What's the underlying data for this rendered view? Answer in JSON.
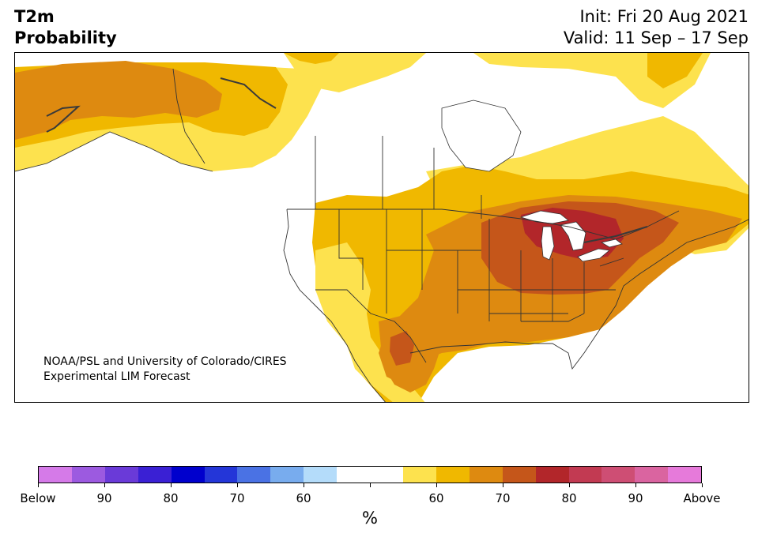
{
  "header": {
    "title_line1": "T2m",
    "title_line2": "Probability",
    "init": "Init: Fri 20 Aug 2021",
    "valid": "Valid: 11 Sep – 17 Sep"
  },
  "map": {
    "region": "North America",
    "credit_line1": "NOAA/PSL and University of Colorado/CIRES",
    "credit_line2": "Experimental LIM Forecast"
  },
  "colorbar": {
    "unit": "%",
    "colors": [
      "#d57ae8",
      "#9c5ae0",
      "#6a3ad8",
      "#3a20d4",
      "#0000cd",
      "#2436d8",
      "#4a72e4",
      "#78acee",
      "#b4dcfa",
      "#ffffff",
      "#ffffff",
      "#fde24e",
      "#f0b800",
      "#de8a10",
      "#c5561a",
      "#b2262a",
      "#c23a52",
      "#ce4e74",
      "#da64a0",
      "#e67ada"
    ],
    "ticks": [
      {
        "label": "Below"
      },
      {
        "label": "90"
      },
      {
        "label": "80"
      },
      {
        "label": "70"
      },
      {
        "label": "60"
      },
      {
        "label": ""
      },
      {
        "label": "60"
      },
      {
        "label": "70"
      },
      {
        "label": "80"
      },
      {
        "label": "90"
      },
      {
        "label": "Above"
      }
    ]
  }
}
